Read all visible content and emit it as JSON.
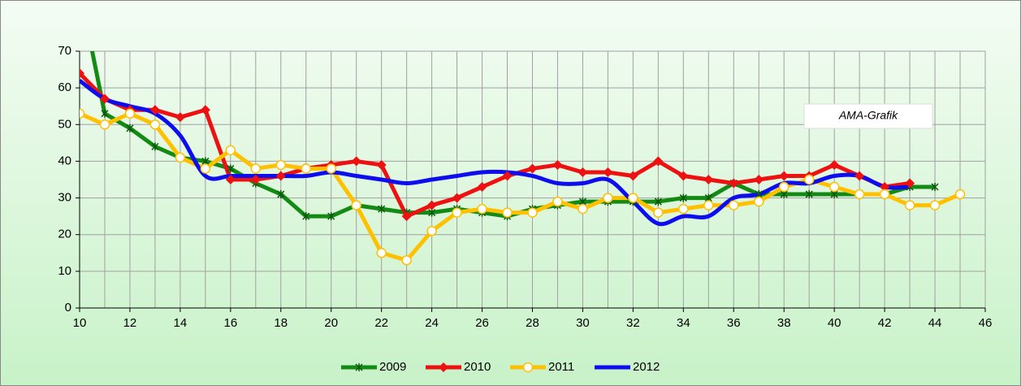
{
  "chart_data": {
    "type": "line",
    "annotation": "AMA-Grafik",
    "x": [
      10,
      11,
      12,
      13,
      14,
      15,
      16,
      17,
      18,
      19,
      20,
      21,
      22,
      23,
      24,
      25,
      26,
      27,
      28,
      29,
      30,
      31,
      32,
      33,
      34,
      35,
      36,
      37,
      38,
      39,
      40,
      41,
      42,
      43,
      44,
      45
    ],
    "series": [
      {
        "name": "2009",
        "color": "#138a13",
        "marker": "star",
        "smooth": false,
        "values": [
          87,
          53,
          49,
          44,
          41,
          40,
          38,
          34,
          31,
          25,
          25,
          28,
          27,
          26,
          26,
          27,
          26,
          25,
          27,
          28,
          29,
          29,
          29,
          29,
          30,
          30,
          34,
          31,
          31,
          31,
          31,
          31,
          31,
          33,
          33,
          null
        ]
      },
      {
        "name": "2010",
        "color": "#ee1111",
        "marker": "diamond",
        "smooth": false,
        "values": [
          64,
          57,
          54,
          54,
          52,
          54,
          35,
          35,
          36,
          38,
          39,
          40,
          39,
          25,
          28,
          30,
          33,
          36,
          38,
          39,
          37,
          37,
          36,
          40,
          36,
          35,
          34,
          35,
          36,
          36,
          39,
          36,
          33,
          34,
          null,
          null
        ]
      },
      {
        "name": "2011",
        "color": "#ffc000",
        "marker": "circle",
        "smooth": false,
        "values": [
          53,
          50,
          53,
          50,
          41,
          38,
          43,
          38,
          39,
          38,
          38,
          28,
          15,
          13,
          21,
          26,
          27,
          26,
          26,
          29,
          27,
          30,
          30,
          26,
          27,
          28,
          28,
          29,
          33,
          35,
          33,
          31,
          31,
          28,
          28,
          31
        ]
      },
      {
        "name": "2012",
        "color": "#0d0dee",
        "marker": "none",
        "smooth": true,
        "values": [
          62,
          57,
          55,
          53,
          47,
          36,
          36,
          36,
          36,
          36,
          37,
          36,
          35,
          34,
          35,
          36,
          37,
          37,
          36,
          34,
          34,
          35,
          29,
          23,
          25,
          25,
          30,
          31,
          34,
          34,
          36,
          36,
          33,
          33,
          null,
          null
        ]
      }
    ],
    "xlim": [
      10,
      46
    ],
    "xticks": [
      10,
      12,
      14,
      16,
      18,
      20,
      22,
      24,
      26,
      28,
      30,
      32,
      34,
      36,
      38,
      40,
      42,
      44,
      46
    ],
    "ylim": [
      0,
      70
    ],
    "yticks": [
      0,
      10,
      20,
      30,
      40,
      50,
      60,
      70
    ],
    "grid": true,
    "legend": "bottom"
  }
}
